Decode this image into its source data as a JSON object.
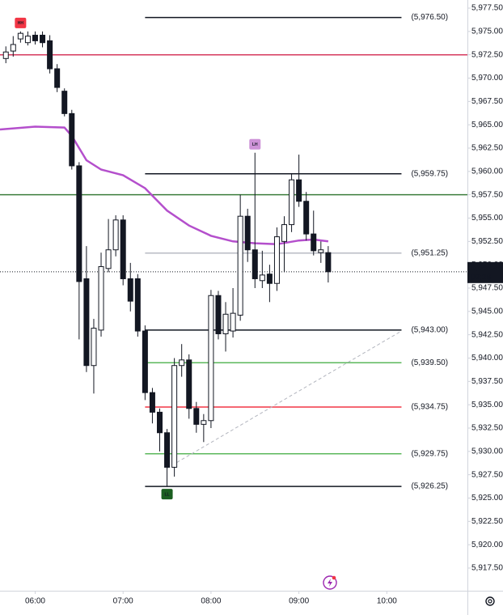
{
  "chart_data": {
    "type": "candlestick",
    "x": [
      "05:40",
      "05:45",
      "05:50",
      "05:55",
      "06:00",
      "06:05",
      "06:10",
      "06:15",
      "06:20",
      "06:25",
      "06:30",
      "06:35",
      "06:40",
      "06:45",
      "06:50",
      "06:55",
      "07:00",
      "07:05",
      "07:10",
      "07:15",
      "07:20",
      "07:25",
      "07:30",
      "07:35",
      "07:40",
      "07:45",
      "07:50",
      "07:55",
      "08:00",
      "08:05",
      "08:10",
      "08:15",
      "08:20",
      "08:25",
      "08:30",
      "08:35",
      "08:40",
      "08:45",
      "08:50",
      "08:55",
      "09:00",
      "09:05",
      "09:10",
      "09:15",
      "09:20"
    ],
    "open": [
      5972.1,
      5972.9,
      5974.2,
      5973.8,
      5974.6,
      5974.6,
      5974.0,
      5971.0,
      5968.6,
      5966.2,
      5960.6,
      5948.5,
      5939.2,
      5943.0,
      5949.6,
      5951.6,
      5954.8,
      5948.5,
      5948.5,
      5942.9,
      5936.3,
      5934.2,
      5932.0,
      5928.3,
      5939.2,
      5939.8,
      5934.6,
      5932.9,
      5933.3,
      5946.7,
      5942.6,
      5942.9,
      5944.6,
      5955.2,
      5951.6,
      5948.3,
      5949.0,
      5948.0,
      5952.5,
      5954.3,
      5959.1,
      5956.8,
      5953.3,
      5951.3,
      5951.3
    ],
    "high": [
      5973.4,
      5974.5,
      5975.0,
      5975.0,
      5975.0,
      5975.0,
      5974.6,
      5971.5,
      5968.9,
      5966.6,
      5961.0,
      5952.0,
      5944.2,
      5951.3,
      5954.9,
      5955.3,
      5955.3,
      5950.2,
      5949.0,
      5943.5,
      5936.8,
      5934.6,
      5932.4,
      5940.0,
      5941.5,
      5940.4,
      5935.3,
      5934.0,
      5947.3,
      5947.2,
      5946.0,
      5947.5,
      5957.5,
      5956.0,
      5962.0,
      5951.5,
      5950.0,
      5954.0,
      5955.2,
      5959.8,
      5961.8,
      5957.8,
      5955.8,
      5952.5,
      5952.0
    ],
    "low": [
      5971.6,
      5972.3,
      5973.8,
      5973.5,
      5973.6,
      5973.3,
      5970.5,
      5968.5,
      5965.9,
      5960.2,
      5942.0,
      5938.5,
      5936.2,
      5942.3,
      5949.2,
      5950.9,
      5947.8,
      5945.0,
      5942.3,
      5935.5,
      5933.0,
      5930.0,
      5926.25,
      5927.3,
      5938.0,
      5933.5,
      5932.0,
      5931.0,
      5932.5,
      5942.0,
      5940.7,
      5942.2,
      5944.0,
      5950.3,
      5947.5,
      5947.5,
      5946.0,
      5947.2,
      5949.2,
      5953.5,
      5956.2,
      5952.6,
      5951.0,
      5950.2,
      5948.1
    ],
    "close": [
      5972.8,
      5973.6,
      5974.8,
      5974.5,
      5974.0,
      5973.8,
      5971.0,
      5969.0,
      5966.2,
      5960.6,
      5948.2,
      5939.2,
      5943.2,
      5949.8,
      5951.6,
      5954.8,
      5948.5,
      5946.1,
      5942.9,
      5936.3,
      5934.2,
      5932.0,
      5928.3,
      5939.2,
      5939.8,
      5934.6,
      5932.9,
      5933.3,
      5946.7,
      5942.6,
      5944.7,
      5944.8,
      5955.2,
      5951.6,
      5948.5,
      5948.9,
      5948.0,
      5953.0,
      5954.3,
      5959.1,
      5956.8,
      5953.3,
      5951.5,
      5951.6,
      5949.25
    ],
    "up_color": "#ffffff",
    "down_color": "#131722",
    "edge_color": "#131722",
    "ma": {
      "color": "#b44fcc",
      "x": [
        "05:36",
        "06:00",
        "06:20",
        "06:25",
        "06:35",
        "06:45",
        "07:00",
        "07:15",
        "07:30",
        "07:45",
        "08:00",
        "08:15",
        "08:30",
        "08:45",
        "09:00",
        "09:10",
        "09:20"
      ],
      "values": [
        5964.5,
        5964.8,
        5964.7,
        5963.8,
        5961.2,
        5960.2,
        5959.6,
        5958.2,
        5955.8,
        5954.2,
        5953.1,
        5952.5,
        5952.3,
        5952.2,
        5952.6,
        5952.7,
        5952.5
      ]
    },
    "lines": [
      {
        "value": 5972.5,
        "color": "#d63a5e"
      },
      {
        "value": 5957.5,
        "color": "#3b7d3b"
      }
    ],
    "levels_x": [
      "07:15",
      "10:10"
    ],
    "levels": [
      {
        "value": 5976.5,
        "label": "(5,976.50)",
        "color": "#131722"
      },
      {
        "value": 5959.75,
        "label": "(5,959.75)",
        "color": "#131722"
      },
      {
        "value": 5951.25,
        "label": "(5,951.25)",
        "color": "#b8bbc4"
      },
      {
        "value": 5943.0,
        "label": "(5,943.00)",
        "color": "#131722"
      },
      {
        "value": 5939.5,
        "label": "(5,939.50)",
        "color": "#5cb85c"
      },
      {
        "value": 5934.75,
        "label": "(5,934.75)",
        "color": "#f23645"
      },
      {
        "value": 5929.75,
        "label": "(5,929.75)",
        "color": "#5cb85c"
      },
      {
        "value": 5926.25,
        "label": "(5,926.25)",
        "color": "#131722"
      }
    ],
    "trendline": {
      "x": [
        "07:30",
        "10:10"
      ],
      "values": [
        5928.2,
        5942.9
      ],
      "color": "#b2b5be"
    },
    "markers": [
      {
        "label": "HH",
        "x": "05:50",
        "value": 5975.0,
        "color": "#f23645",
        "position": "above"
      },
      {
        "label": "LH",
        "x": "08:30",
        "value": 5962.0,
        "color": "#ce93d8",
        "position": "above"
      },
      {
        "label": "LL",
        "x": "07:30",
        "value": 5926.25,
        "color": "#1b5e20",
        "position": "below"
      }
    ],
    "current": {
      "value": 5949.25,
      "label": "5,949.25",
      "countdown": "02:28"
    },
    "xlim": [
      "05:36",
      "10:55"
    ],
    "xticks": [
      "06:00",
      "07:00",
      "08:00",
      "09:00",
      "10:00"
    ],
    "ylim": [
      5915.07,
      5978.37
    ],
    "yticks": [
      {
        "value": 5917.5,
        "label": "5,917.50"
      },
      {
        "value": 5920.0,
        "label": "5,920.00"
      },
      {
        "value": 5922.5,
        "label": "5,922.50"
      },
      {
        "value": 5925.0,
        "label": "5,925.00"
      },
      {
        "value": 5927.5,
        "label": "5,927.50"
      },
      {
        "value": 5930.0,
        "label": "5,930.00"
      },
      {
        "value": 5932.5,
        "label": "5,932.50"
      },
      {
        "value": 5935.0,
        "label": "5,935.00"
      },
      {
        "value": 5937.5,
        "label": "5,937.50"
      },
      {
        "value": 5940.0,
        "label": "5,940.00"
      },
      {
        "value": 5942.5,
        "label": "5,942.50"
      },
      {
        "value": 5945.0,
        "label": "5,945.00"
      },
      {
        "value": 5947.5,
        "label": "5,947.50"
      },
      {
        "value": 5950.0,
        "label": "5,950.00"
      },
      {
        "value": 5952.5,
        "label": "5,952.50"
      },
      {
        "value": 5955.0,
        "label": "5,955.00"
      },
      {
        "value": 5957.5,
        "label": "5,957.50"
      },
      {
        "value": 5960.0,
        "label": "5,960.00"
      },
      {
        "value": 5962.5,
        "label": "5,962.50"
      },
      {
        "value": 5965.0,
        "label": "5,965.00"
      },
      {
        "value": 5967.5,
        "label": "5,967.50"
      },
      {
        "value": 5970.0,
        "label": "5,970.00"
      },
      {
        "value": 5972.5,
        "label": "5,972.50"
      },
      {
        "value": 5975.0,
        "label": "5,975.00"
      },
      {
        "value": 5977.5,
        "label": "5,977.50"
      }
    ]
  }
}
